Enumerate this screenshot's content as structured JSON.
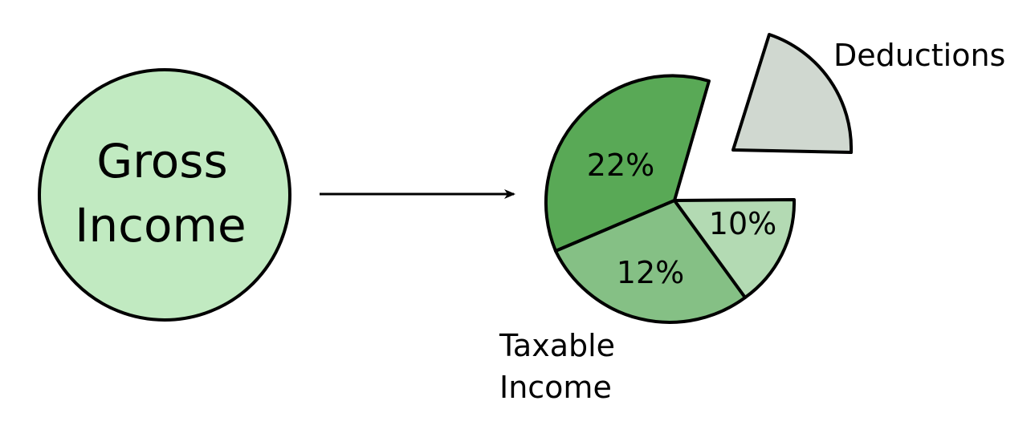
{
  "gross_income": {
    "line1": "Gross",
    "line2": "Income",
    "fill": "#c1eac1"
  },
  "taxable_income": {
    "line1": "Taxable",
    "line2": "Income"
  },
  "deductions": {
    "label": "Deductions",
    "fill": "#d0d8d0"
  },
  "slices": [
    {
      "label": "22%",
      "fill": "#59a956"
    },
    {
      "label": "12%",
      "fill": "#85c085"
    },
    {
      "label": "10%",
      "fill": "#b3dab3"
    }
  ]
}
